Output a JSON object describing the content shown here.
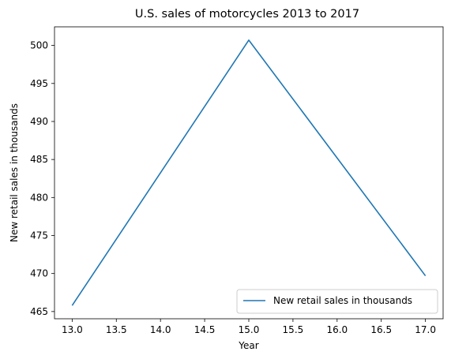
{
  "chart_data": {
    "type": "line",
    "title": "U.S. sales of motorcycles 2013 to 2017",
    "xlabel": "Year",
    "ylabel": "New retail sales in thousands",
    "x": [
      13.0,
      15.0,
      17.0
    ],
    "series": [
      {
        "name": "New retail sales in thousands",
        "values": [
          465.8,
          500.7,
          469.7
        ],
        "color": "#1f77b4"
      }
    ],
    "xlim": [
      12.8,
      17.2
    ],
    "ylim": [
      464.05,
      502.45
    ],
    "xticks": [
      13.0,
      13.5,
      14.0,
      14.5,
      15.0,
      15.5,
      16.0,
      16.5,
      17.0
    ],
    "xtick_labels": [
      "13.0",
      "13.5",
      "14.0",
      "14.5",
      "15.0",
      "15.5",
      "16.0",
      "16.5",
      "17.0"
    ],
    "yticks": [
      465,
      470,
      475,
      480,
      485,
      490,
      495,
      500
    ],
    "ytick_labels": [
      "465",
      "470",
      "475",
      "480",
      "485",
      "490",
      "495",
      "500"
    ],
    "grid": false,
    "legend_position": "lower-right"
  }
}
